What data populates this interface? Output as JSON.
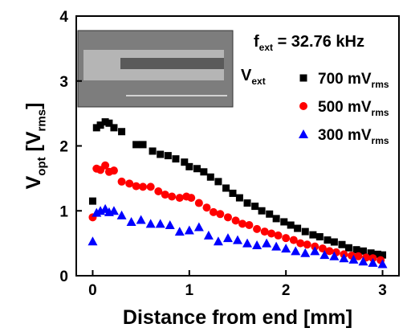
{
  "chart_data": {
    "type": "scatter",
    "xlabel": "Distance from end [mm]",
    "ylabel": [
      "V",
      "opt",
      " [V",
      "rms",
      "]"
    ],
    "freq_label": [
      "f",
      "ext",
      " = 32.76 kHz"
    ],
    "series_label": [
      "V",
      "ext"
    ],
    "xlim": [
      -0.17,
      3.17
    ],
    "ylim": [
      0,
      4
    ],
    "xticks": [
      0,
      1,
      2,
      3
    ],
    "yticks": [
      0,
      1,
      2,
      3,
      4
    ],
    "series": [
      {
        "name": "700 mV",
        "name_sub": "rms",
        "color": "#000000",
        "marker": "square",
        "x": [
          0,
          0.04,
          0.08,
          0.13,
          0.17,
          0.22,
          0.3,
          0.45,
          0.52,
          0.62,
          0.7,
          0.78,
          0.86,
          0.95,
          1.0,
          1.08,
          1.15,
          1.22,
          1.3,
          1.38,
          1.45,
          1.52,
          1.6,
          1.68,
          1.75,
          1.83,
          1.9,
          1.98,
          2.05,
          2.12,
          2.2,
          2.28,
          2.35,
          2.43,
          2.5,
          2.58,
          2.65,
          2.73,
          2.8,
          2.88,
          2.95,
          3.0
        ],
        "values": [
          1.15,
          2.28,
          2.32,
          2.37,
          2.35,
          2.28,
          2.22,
          2.02,
          2.02,
          1.92,
          1.87,
          1.85,
          1.8,
          1.75,
          1.68,
          1.65,
          1.6,
          1.52,
          1.45,
          1.35,
          1.27,
          1.2,
          1.12,
          1.07,
          1.0,
          0.95,
          0.88,
          0.83,
          0.78,
          0.73,
          0.68,
          0.63,
          0.6,
          0.55,
          0.52,
          0.48,
          0.43,
          0.4,
          0.38,
          0.35,
          0.33,
          0.32
        ]
      },
      {
        "name": "500 mV",
        "name_sub": "rms",
        "color": "#ff0000",
        "marker": "circle",
        "x": [
          0,
          0.04,
          0.08,
          0.13,
          0.17,
          0.22,
          0.3,
          0.38,
          0.45,
          0.52,
          0.6,
          0.68,
          0.75,
          0.82,
          0.9,
          0.97,
          1.02,
          1.1,
          1.18,
          1.25,
          1.32,
          1.4,
          1.48,
          1.55,
          1.62,
          1.7,
          1.78,
          1.85,
          1.92,
          2.0,
          2.08,
          2.15,
          2.22,
          2.3,
          2.38,
          2.45,
          2.52,
          2.6,
          2.68,
          2.75,
          2.83,
          2.9,
          2.98
        ],
        "values": [
          0.9,
          1.65,
          1.63,
          1.7,
          1.6,
          1.62,
          1.45,
          1.42,
          1.38,
          1.37,
          1.37,
          1.3,
          1.25,
          1.22,
          1.2,
          1.22,
          1.2,
          1.12,
          1.05,
          0.98,
          0.95,
          0.9,
          0.85,
          0.8,
          0.78,
          0.72,
          0.68,
          0.65,
          0.62,
          0.58,
          0.55,
          0.5,
          0.48,
          0.45,
          0.42,
          0.38,
          0.36,
          0.33,
          0.31,
          0.3,
          0.28,
          0.27,
          0.24
        ]
      },
      {
        "name": "300 mV",
        "name_sub": "rms",
        "color": "#0000ff",
        "marker": "triangle",
        "x": [
          0,
          0.04,
          0.08,
          0.13,
          0.17,
          0.22,
          0.3,
          0.4,
          0.5,
          0.6,
          0.7,
          0.8,
          0.9,
          1.0,
          1.1,
          1.2,
          1.3,
          1.4,
          1.5,
          1.6,
          1.7,
          1.8,
          1.9,
          2.0,
          2.1,
          2.2,
          2.3,
          2.4,
          2.5,
          2.6,
          2.7,
          2.8,
          2.9,
          3.0
        ],
        "values": [
          0.53,
          0.97,
          1.0,
          1.03,
          0.98,
          1.0,
          0.93,
          0.83,
          0.86,
          0.8,
          0.8,
          0.78,
          0.68,
          0.7,
          0.75,
          0.62,
          0.53,
          0.58,
          0.55,
          0.5,
          0.47,
          0.5,
          0.45,
          0.42,
          0.38,
          0.35,
          0.38,
          0.32,
          0.3,
          0.27,
          0.25,
          0.22,
          0.2,
          0.18
        ]
      }
    ]
  }
}
